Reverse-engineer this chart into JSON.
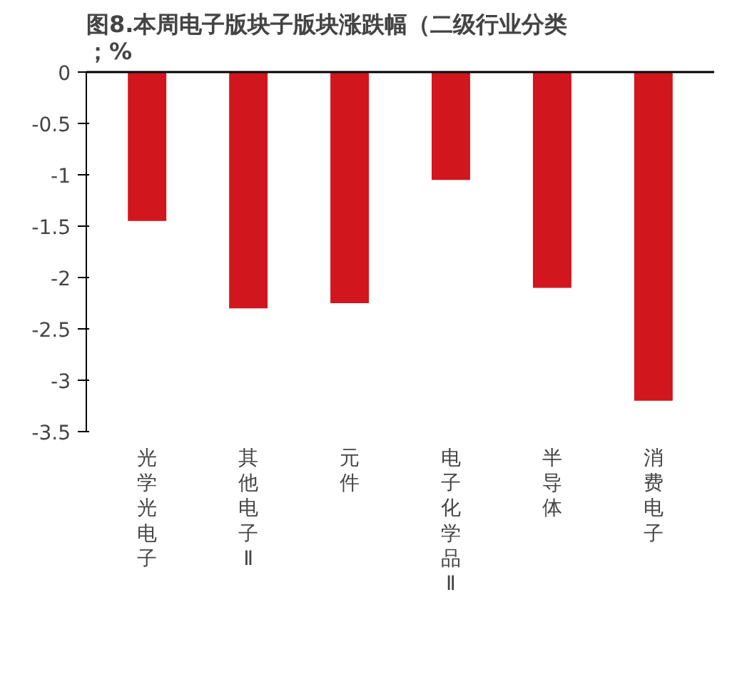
{
  "chart_data": {
    "type": "bar",
    "title": "图8.本周电子版块子版块涨跌幅（二级行业分类；%",
    "categories": [
      "光学光电子",
      "其他电子Ⅱ",
      "元件",
      "电子化学品Ⅱ",
      "半导体",
      "消费电子"
    ],
    "values": [
      -1.45,
      -2.3,
      -2.25,
      -1.05,
      -2.1,
      -3.2
    ],
    "color": "#d2161e",
    "ylim": [
      -3.5,
      0
    ],
    "yticks": [
      0,
      -0.5,
      -1,
      -1.5,
      -2,
      -2.5,
      -3,
      -3.5
    ],
    "grid": false
  }
}
